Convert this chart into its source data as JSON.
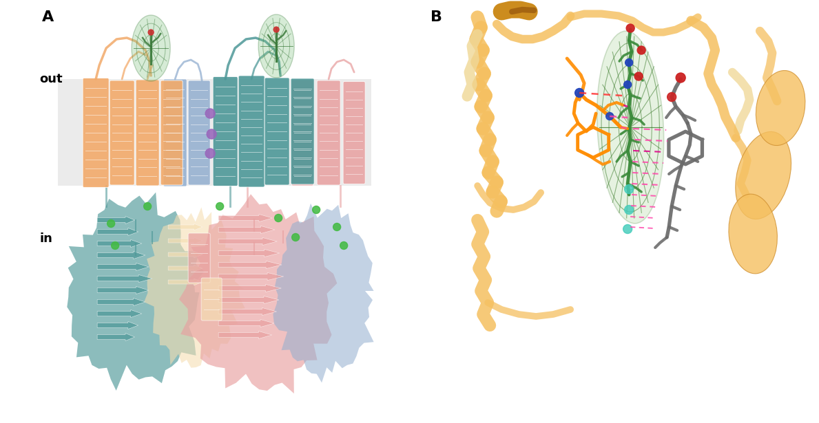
{
  "fig_width": 11.89,
  "fig_height": 6.15,
  "dpi": 100,
  "bg_color": "#ffffff",
  "panel_A": {
    "label": "A",
    "label_fontsize": 16,
    "label_fontweight": "bold",
    "text_out": "out",
    "text_in": "in",
    "text_fontsize": 13,
    "text_fontweight": "bold",
    "membrane_color": "#ebebeb",
    "membrane_alpha": 1.0,
    "colors": {
      "orange": "#F2AA6A",
      "teal": "#4E9898",
      "pink": "#E8A0A0",
      "blue": "#92AECF",
      "green_dark": "#3A7A3A",
      "green_light": "#78BF78",
      "cream": "#F5DEB3",
      "purple": "#9966BB",
      "green_dot": "#44BB44"
    }
  },
  "panel_B": {
    "label": "B",
    "label_fontsize": 16,
    "label_fontweight": "bold",
    "colors": {
      "helix_orange": "#F5C060",
      "helix_tan": "#F0D898",
      "molecule_orange": "#FF8C00",
      "molecule_green": "#3A8A3A",
      "molecule_gray": "#6A6A6A",
      "molecule_blue": "#2244BB",
      "molecule_red": "#CC2222",
      "mesh_edge": "#3A7A2A",
      "mesh_face": "#90C878",
      "hbond_pink": "#FF44AA",
      "hbond_magenta": "#DD0088",
      "water_cyan": "#44CCBB"
    }
  }
}
